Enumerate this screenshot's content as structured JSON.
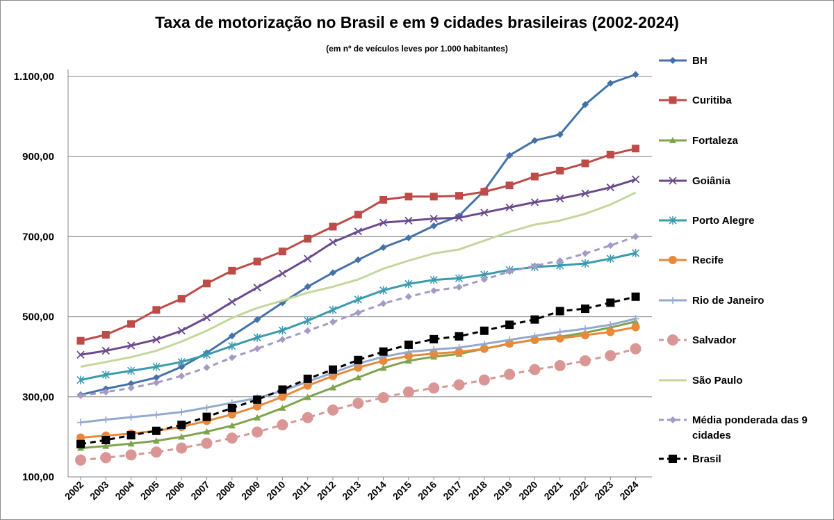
{
  "chart_data": {
    "type": "line",
    "title": "Taxa de motorização no Brasil e em 9 cidades brasileiras (2002-2024)",
    "subtitle": "(em nº de veículos leves por 1.000 habitantes)",
    "xlabel": "",
    "ylabel": "",
    "ylim": [
      100,
      1100
    ],
    "y_ticks": [
      "1.100,00",
      "900,00",
      "700,00",
      "500,00",
      "300,00",
      "100,00"
    ],
    "y_tick_values": [
      1100,
      900,
      700,
      500,
      300,
      100
    ],
    "grid": true,
    "legend_position": "right",
    "categories": [
      "2002",
      "2003",
      "2004",
      "2005",
      "2006",
      "2007",
      "2008",
      "2009",
      "2010",
      "2011",
      "2012",
      "2013",
      "2014",
      "2015",
      "2016",
      "2017",
      "2018",
      "2019",
      "2020",
      "2021",
      "2022",
      "2023",
      "2024"
    ],
    "series": [
      {
        "name": "BH",
        "color": "#4472a8",
        "marker": "diamond",
        "dashed": false,
        "values": [
          305,
          320,
          333,
          348,
          375,
          410,
          452,
          493,
          535,
          575,
          610,
          642,
          673,
          697,
          727,
          752,
          815,
          903,
          940,
          955,
          1030,
          1083,
          1105
        ]
      },
      {
        "name": "Curitiba",
        "color": "#be4b48",
        "marker": "square",
        "dashed": false,
        "values": [
          440,
          455,
          482,
          517,
          545,
          583,
          615,
          638,
          663,
          695,
          725,
          755,
          792,
          800,
          800,
          802,
          812,
          828,
          850,
          865,
          883,
          905,
          920
        ]
      },
      {
        "name": "Fortaleza",
        "color": "#7fa34c",
        "marker": "triangle",
        "dashed": false,
        "values": [
          172,
          177,
          183,
          190,
          200,
          213,
          228,
          248,
          272,
          299,
          323,
          348,
          372,
          390,
          400,
          407,
          420,
          432,
          443,
          450,
          460,
          473,
          488
        ]
      },
      {
        "name": "Goiânia",
        "color": "#6a4a8c",
        "marker": "x",
        "dashed": false,
        "values": [
          405,
          415,
          428,
          443,
          465,
          498,
          537,
          573,
          608,
          645,
          686,
          713,
          735,
          740,
          745,
          747,
          760,
          773,
          786,
          795,
          808,
          823,
          843
        ]
      },
      {
        "name": "Porto Alegre",
        "color": "#3a9aae",
        "marker": "asterisk",
        "dashed": false,
        "values": [
          342,
          355,
          365,
          375,
          387,
          405,
          427,
          448,
          466,
          490,
          517,
          543,
          566,
          582,
          592,
          596,
          605,
          617,
          624,
          628,
          633,
          645,
          659
        ]
      },
      {
        "name": "Recife",
        "color": "#e8893a",
        "marker": "circle",
        "dashed": false,
        "values": [
          198,
          203,
          208,
          215,
          225,
          240,
          256,
          276,
          300,
          328,
          352,
          373,
          390,
          402,
          408,
          412,
          420,
          433,
          442,
          446,
          454,
          462,
          474
        ]
      },
      {
        "name": "Rio de Janeiro",
        "color": "#93a9cf",
        "marker": "plus",
        "dashed": false,
        "values": [
          236,
          243,
          249,
          255,
          262,
          273,
          285,
          297,
          315,
          338,
          360,
          383,
          400,
          412,
          418,
          423,
          432,
          442,
          452,
          462,
          470,
          480,
          495
        ]
      },
      {
        "name": "Salvador",
        "color": "#d99694",
        "marker": "bigcircle",
        "dashed": true,
        "values": [
          142,
          148,
          155,
          162,
          172,
          184,
          197,
          212,
          230,
          248,
          267,
          284,
          298,
          312,
          322,
          330,
          342,
          356,
          368,
          378,
          390,
          403,
          420
        ]
      },
      {
        "name": "São Paulo",
        "color": "#c4d79b",
        "marker": "none",
        "dashed": false,
        "values": [
          375,
          387,
          399,
          415,
          438,
          465,
          497,
          522,
          540,
          560,
          575,
          593,
          620,
          640,
          658,
          668,
          690,
          712,
          730,
          740,
          757,
          780,
          810
        ]
      },
      {
        "name": "Média ponderada das 9 cidades",
        "color": "#a699c4",
        "marker": "diamond",
        "dashed": true,
        "values": [
          303,
          312,
          322,
          335,
          352,
          373,
          398,
          420,
          443,
          465,
          487,
          510,
          533,
          550,
          565,
          574,
          593,
          613,
          627,
          640,
          658,
          678,
          700
        ]
      },
      {
        "name": "Brasil",
        "color": "#000000",
        "marker": "square",
        "dashed": true,
        "values": [
          182,
          192,
          204,
          215,
          230,
          250,
          272,
          293,
          318,
          345,
          368,
          392,
          413,
          430,
          444,
          451,
          465,
          480,
          493,
          514,
          520,
          535,
          550
        ]
      }
    ]
  }
}
